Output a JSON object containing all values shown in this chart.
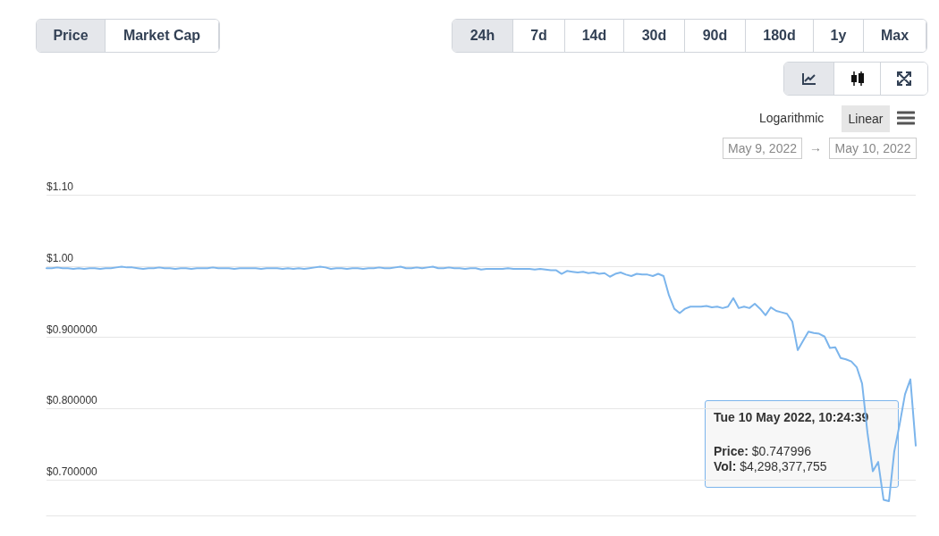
{
  "chart_data": {
    "type": "line",
    "categories": [
      null,
      null,
      null,
      null,
      null,
      null,
      null,
      null,
      null,
      null,
      null,
      null,
      null,
      null,
      null,
      null,
      null,
      null,
      null,
      null,
      null,
      null,
      null,
      null,
      null,
      null,
      null,
      null,
      null,
      null,
      null,
      null,
      null,
      null,
      null,
      null,
      null,
      null,
      null,
      null,
      null,
      null,
      null,
      null,
      null,
      null,
      null,
      null,
      null,
      null,
      null,
      null,
      null,
      null,
      null,
      null,
      null,
      null,
      null,
      null,
      null,
      null,
      null,
      null,
      null,
      null,
      null,
      null,
      null,
      null,
      null,
      null,
      null,
      null,
      null,
      null,
      null,
      null,
      null,
      null,
      null,
      null,
      null,
      null,
      null,
      null,
      null,
      null,
      null,
      null,
      null,
      null,
      null,
      null,
      null,
      null,
      null,
      null,
      null,
      null,
      null,
      null,
      null,
      null,
      null,
      null,
      null,
      null,
      null,
      null,
      null,
      null,
      null,
      null,
      null,
      null,
      null,
      null,
      null,
      null,
      null,
      null,
      null,
      null,
      null,
      null,
      null,
      null,
      null,
      null,
      null,
      null,
      null,
      null,
      null,
      null,
      null,
      null,
      null,
      null,
      null,
      null,
      null,
      null,
      null,
      null,
      null,
      null,
      null,
      null,
      null,
      null,
      null,
      null,
      null,
      null,
      null,
      null,
      null,
      null,
      null,
      null,
      null
    ],
    "series": [
      {
        "color": "#7cb5ec",
        "values": [
          0.997,
          0.997,
          0.998,
          0.997,
          0.997,
          0.996,
          0.997,
          0.996,
          0.997,
          0.997,
          0.996,
          0.997,
          0.997,
          0.998,
          0.999,
          0.998,
          0.998,
          0.997,
          0.996,
          0.997,
          0.997,
          0.998,
          0.997,
          0.997,
          0.996,
          0.997,
          0.997,
          0.996,
          0.997,
          0.997,
          0.997,
          0.998,
          0.997,
          0.997,
          0.997,
          0.996,
          0.997,
          0.997,
          0.997,
          0.997,
          0.996,
          0.997,
          0.997,
          0.997,
          0.996,
          0.997,
          0.996,
          0.997,
          0.996,
          0.997,
          0.998,
          0.999,
          0.998,
          0.996,
          0.997,
          0.997,
          0.996,
          0.997,
          0.997,
          0.996,
          0.997,
          0.997,
          0.998,
          0.997,
          0.997,
          0.998,
          0.999,
          0.997,
          0.997,
          0.998,
          0.997,
          0.998,
          0.999,
          0.997,
          0.997,
          0.998,
          0.997,
          0.997,
          0.996,
          0.997,
          0.997,
          0.995,
          0.996,
          0.996,
          0.996,
          0.996,
          0.997,
          0.996,
          0.996,
          0.996,
          0.996,
          0.995,
          0.996,
          0.995,
          0.994,
          0.994,
          0.989,
          0.993,
          0.992,
          0.991,
          0.992,
          0.99,
          0.991,
          0.989,
          0.99,
          0.985,
          0.989,
          0.991,
          0.988,
          0.986,
          0.989,
          0.988,
          0.988,
          0.986,
          0.989,
          0.986,
          0.959,
          0.94,
          0.934,
          0.94,
          0.943,
          0.943,
          0.943,
          0.944,
          0.942,
          0.943,
          0.941,
          0.943,
          0.955,
          0.941,
          0.943,
          0.941,
          0.947,
          0.94,
          0.931,
          0.942,
          0.937,
          0.935,
          0.933,
          0.922,
          0.882,
          0.895,
          0.908,
          0.906,
          0.905,
          0.901,
          0.885,
          0.886,
          0.871,
          0.869,
          0.866,
          0.858,
          0.835,
          0.766,
          0.712,
          0.725,
          0.672,
          0.67,
          0.74,
          0.778,
          0.82,
          0.841,
          0.748
        ]
      }
    ],
    "ylim": [
      0.65,
      1.1
    ],
    "yticks": [
      {
        "value": 0.7,
        "label": "$0.700000"
      },
      {
        "value": 0.8,
        "label": "$0.800000"
      },
      {
        "value": 0.9,
        "label": "$0.900000"
      },
      {
        "value": 1.0,
        "label": "$1.00"
      },
      {
        "value": 1.1,
        "label": "$1.10"
      }
    ],
    "tick_labels": "y",
    "grid": "y",
    "line_style": "solid",
    "annotations": [
      "Price",
      "Market Cap",
      "24h",
      "7d",
      "14d",
      "30d",
      "90d",
      "180d",
      "1y",
      "Max",
      "Logarithmic",
      "Linear",
      "May 9, 2022",
      "→",
      "May 10, 2022",
      "Tue 10 May 2022, 10:24:39",
      "Price: $0.747996",
      "Vol: $4,298,377,755"
    ]
  }
}
